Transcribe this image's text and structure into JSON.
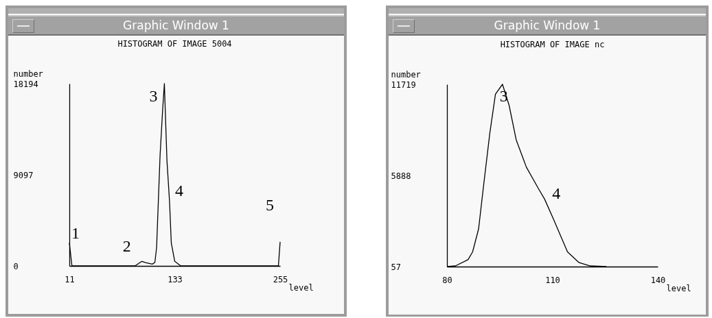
{
  "chart_data": [
    {
      "type": "line",
      "title": "Graphic Window 1",
      "subtitle": "HISTOGRAM OF IMAGE 5004",
      "xlabel": "level",
      "ylabel": "number",
      "color": "#000000",
      "x": [
        11,
        14,
        87,
        95,
        99,
        107,
        110,
        112,
        116,
        119,
        121,
        124,
        127,
        129,
        133,
        140,
        153,
        253,
        255
      ],
      "values": [
        2300,
        0,
        0,
        460,
        340,
        180,
        340,
        1830,
        11000,
        15600,
        18194,
        10500,
        6400,
        2300,
        460,
        0,
        0,
        0,
        2400
      ],
      "xlim": [
        11,
        255
      ],
      "ylim": [
        0,
        18194
      ],
      "xticks": [
        11,
        133,
        255
      ],
      "yticks": [
        0,
        9097,
        18194
      ],
      "annotations": [
        {
          "text": "1",
          "x": 11,
          "y": 2300
        },
        {
          "text": "2",
          "x": 99,
          "y": 340
        },
        {
          "text": "3",
          "x": 121,
          "y": 18194
        },
        {
          "text": "4",
          "x": 127,
          "y": 6400
        },
        {
          "text": "5",
          "x": 255,
          "y": 2400
        }
      ]
    },
    {
      "type": "line",
      "title": "Graphic Window 1",
      "subtitle": "HISTOGRAM OF IMAGE nc",
      "xlabel": "level",
      "ylabel": "number",
      "color": "#000000",
      "x": [
        80,
        82.4,
        86,
        87.3,
        89,
        90.5,
        92.2,
        93.8,
        95.8,
        97.7,
        99.7,
        102.6,
        105.9,
        107.8,
        110.4,
        114.3,
        117.6,
        120.8,
        125.4
      ],
      "values": [
        57,
        100,
        500,
        1000,
        2470,
        5390,
        8600,
        11090,
        11719,
        10360,
        8170,
        6420,
        5100,
        4370,
        3050,
        1000,
        310,
        100,
        57
      ],
      "xlim": [
        80,
        140
      ],
      "ylim": [
        57,
        11719
      ],
      "xticks": [
        80,
        110,
        140
      ],
      "yticks": [
        57,
        5888,
        11719
      ],
      "annotations": [
        {
          "text": "3",
          "x": 95.8,
          "y": 11719
        },
        {
          "text": "4",
          "x": 107.8,
          "y": 4370
        }
      ]
    }
  ]
}
